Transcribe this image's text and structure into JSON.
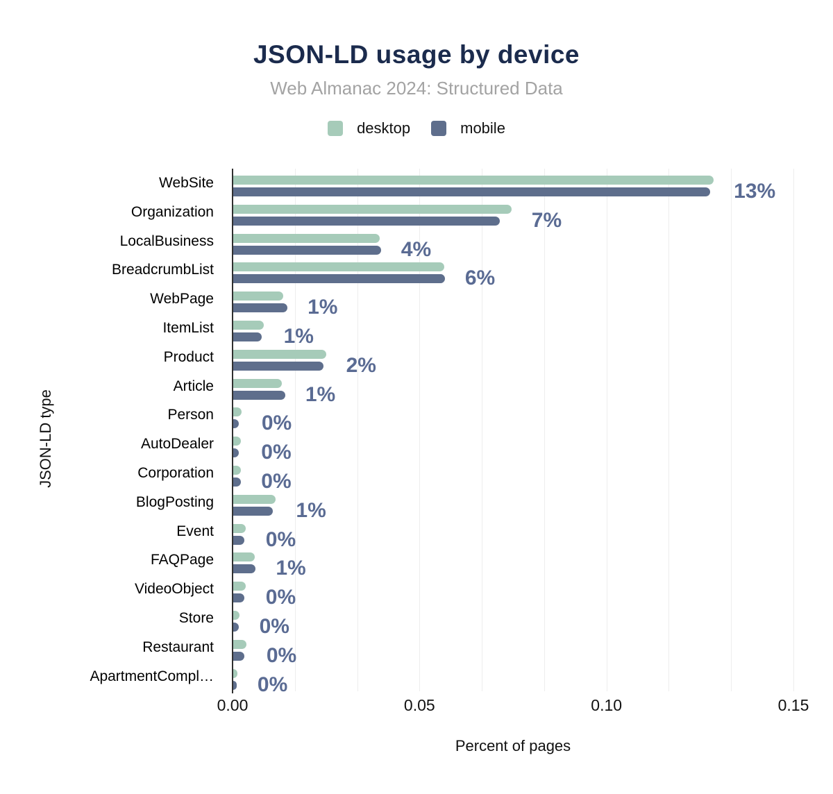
{
  "header": {
    "title": "JSON-LD usage by device",
    "subtitle": "Web Almanac 2024: Structured Data"
  },
  "colors": {
    "desktop": "#a6cbb9",
    "mobile": "#5e6e8c",
    "value_label": "#5a6b93",
    "title": "#1b2b4d",
    "subtitle": "#a3a3a3",
    "axis_line": "#2f2f2f",
    "gridline": "#ededed",
    "text": "#111111"
  },
  "chart_data": {
    "type": "bar",
    "orientation": "horizontal",
    "title": "JSON-LD usage by device",
    "subtitle": "Web Almanac 2024: Structured Data",
    "xlabel": "Percent of pages",
    "ylabel": "JSON-LD type",
    "xlim": [
      0,
      0.15
    ],
    "xticks": [
      "0.00",
      "0.05",
      "0.10",
      "0.15"
    ],
    "grid": "vertical gridlines every 0.0167, light gray",
    "legend_position": "top-center",
    "categories": [
      "WebSite",
      "Organization",
      "LocalBusiness",
      "BreadcrumbList",
      "WebPage",
      "ItemList",
      "Product",
      "Article",
      "Person",
      "AutoDealer",
      "Corporation",
      "BlogPosting",
      "Event",
      "FAQPage",
      "VideoObject",
      "Store",
      "Restaurant",
      "ApartmentCompl…"
    ],
    "series": [
      {
        "name": "desktop",
        "color": "#a6cbb9",
        "values": [
          0.1285,
          0.0744,
          0.0391,
          0.0564,
          0.0133,
          0.0081,
          0.0248,
          0.013,
          0.0022,
          0.0021,
          0.0021,
          0.0114,
          0.0033,
          0.0058,
          0.0033,
          0.0016,
          0.0035,
          0.0011
        ]
      },
      {
        "name": "mobile",
        "color": "#5e6e8c",
        "values": [
          0.1275,
          0.0713,
          0.0395,
          0.0566,
          0.0145,
          0.0076,
          0.0242,
          0.0139,
          0.0015,
          0.0015,
          0.002,
          0.0105,
          0.003,
          0.006,
          0.003,
          0.0015,
          0.003,
          0.001
        ]
      }
    ],
    "bar_labels": [
      "13%",
      "7%",
      "4%",
      "6%",
      "1%",
      "1%",
      "2%",
      "1%",
      "0%",
      "0%",
      "0%",
      "1%",
      "0%",
      "1%",
      "0%",
      "0%",
      "0%",
      "0%"
    ]
  }
}
